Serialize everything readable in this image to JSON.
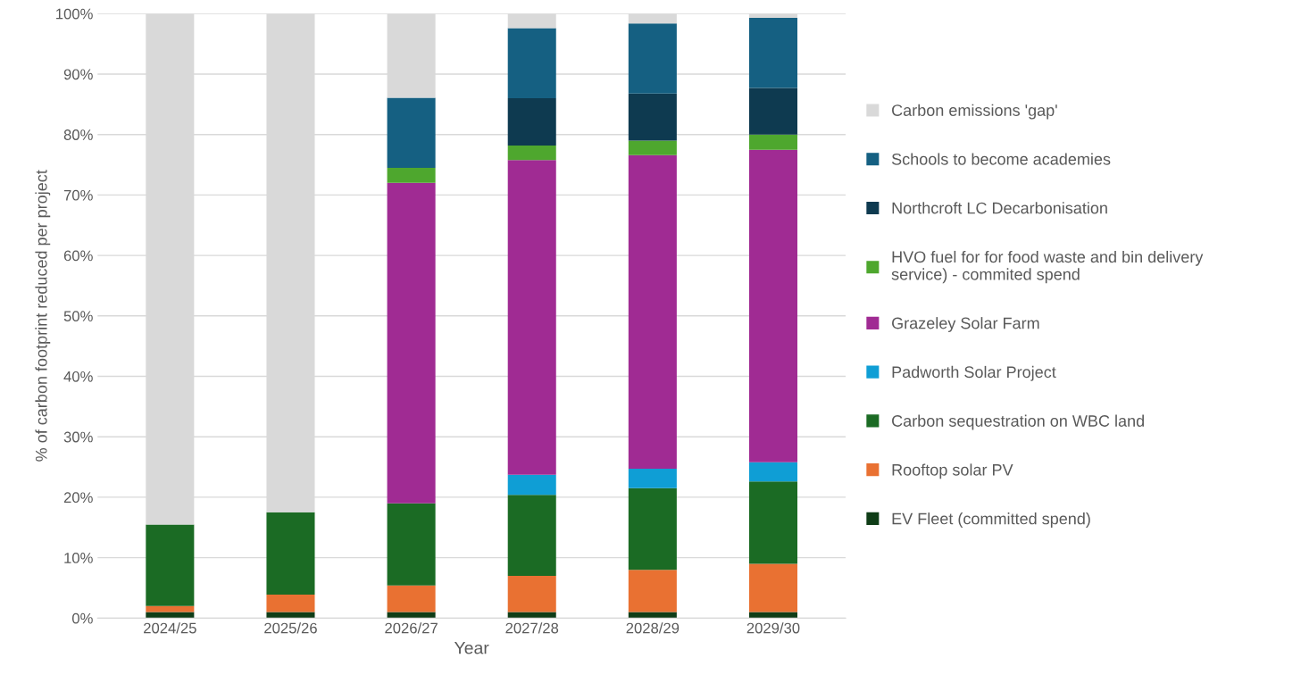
{
  "chart_data": {
    "type": "bar",
    "stacked": true,
    "xlabel": "Year",
    "ylabel": "% of carbon footprint reduced per project",
    "categories": [
      "2024/25",
      "2025/26",
      "2026/27",
      "2027/28",
      "2028/29",
      "2029/30"
    ],
    "series": [
      {
        "name": "EV Fleet (committed spend)",
        "color": "#0f3d17",
        "values": [
          1,
          1,
          1,
          1,
          1,
          1
        ]
      },
      {
        "name": "Rooftop solar PV",
        "color": "#e97132",
        "values": [
          1,
          2.9,
          4.4,
          6,
          7,
          8
        ]
      },
      {
        "name": "Carbon sequestration on WBC land",
        "color": "#1b6b24",
        "values": [
          13.5,
          13.6,
          13.6,
          13.4,
          13.5,
          13.6
        ]
      },
      {
        "name": "Padworth Solar Project",
        "color": "#0f9ed5",
        "values": [
          0,
          0,
          0,
          3.3,
          3.2,
          3.2
        ]
      },
      {
        "name": "Grazeley Solar Farm",
        "color": "#a02b93",
        "values": [
          0,
          0,
          53,
          52.1,
          51.9,
          51.7
        ]
      },
      {
        "name": "HVO fuel for for food waste and bin delivery service) - commited spend",
        "color": "#4ea72e",
        "values": [
          0,
          0,
          2.5,
          2.4,
          2.4,
          2.5
        ]
      },
      {
        "name": "Northcroft LC Decarbonisation",
        "color": "#0e3a50",
        "values": [
          0,
          0,
          0,
          7.8,
          7.8,
          7.7
        ]
      },
      {
        "name": "Schools to become academies",
        "color": "#156082",
        "values": [
          0,
          0,
          11.6,
          11.6,
          11.6,
          11.6
        ]
      },
      {
        "name": "Carbon emissions 'gap'",
        "color": "#d9d9d9",
        "values": [
          84.5,
          82.5,
          13.9,
          2.4,
          1.6,
          0.7
        ]
      }
    ],
    "ylim": [
      0,
      100
    ],
    "yticks": [
      {
        "value": 0,
        "label": "0%"
      },
      {
        "value": 10,
        "label": "10%"
      },
      {
        "value": 20,
        "label": "20%"
      },
      {
        "value": 30,
        "label": "30%"
      },
      {
        "value": 40,
        "label": "40%"
      },
      {
        "value": 50,
        "label": "50%"
      },
      {
        "value": 60,
        "label": "60%"
      },
      {
        "value": 70,
        "label": "70%"
      },
      {
        "value": 80,
        "label": "80%"
      },
      {
        "value": 90,
        "label": "90%"
      },
      {
        "value": 100,
        "label": "100%"
      }
    ],
    "grid": "y",
    "legend": "right"
  }
}
